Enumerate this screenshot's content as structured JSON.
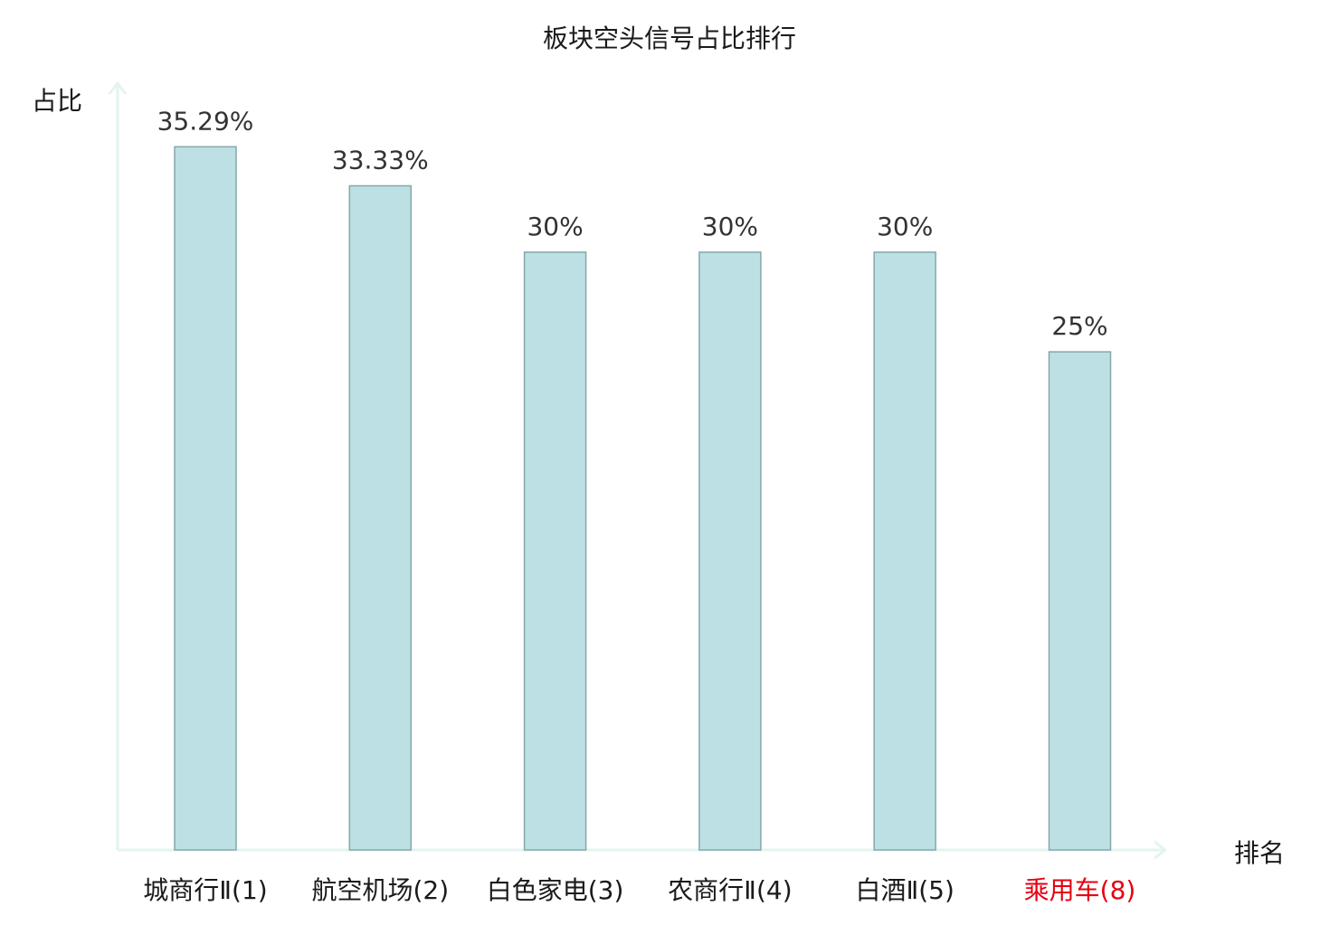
{
  "chart_data": {
    "type": "bar",
    "title": "板块空头信号占比排行",
    "xlabel": "排名",
    "ylabel": "占比",
    "categories": [
      "城商行Ⅱ(1)",
      "航空机场(2)",
      "白色家电(3)",
      "农商行Ⅱ(4)",
      "白酒Ⅱ(5)",
      "乘用车(8)"
    ],
    "values": [
      35.29,
      33.33,
      30,
      30,
      30,
      25
    ],
    "value_labels": [
      "35.29%",
      "33.33%",
      "30%",
      "30%",
      "30%",
      "25%"
    ],
    "highlight_categories": [
      "乘用车(8)"
    ],
    "ylim": [
      0,
      40
    ],
    "grid": false,
    "legend": "none",
    "colors": {
      "bar_fill": "#bce0e3",
      "bar_stroke": "#86a8aa",
      "axis": "#e3f4f1",
      "text": "#1a1a1a",
      "value_label": "#333333",
      "highlight": "#e60012"
    }
  }
}
